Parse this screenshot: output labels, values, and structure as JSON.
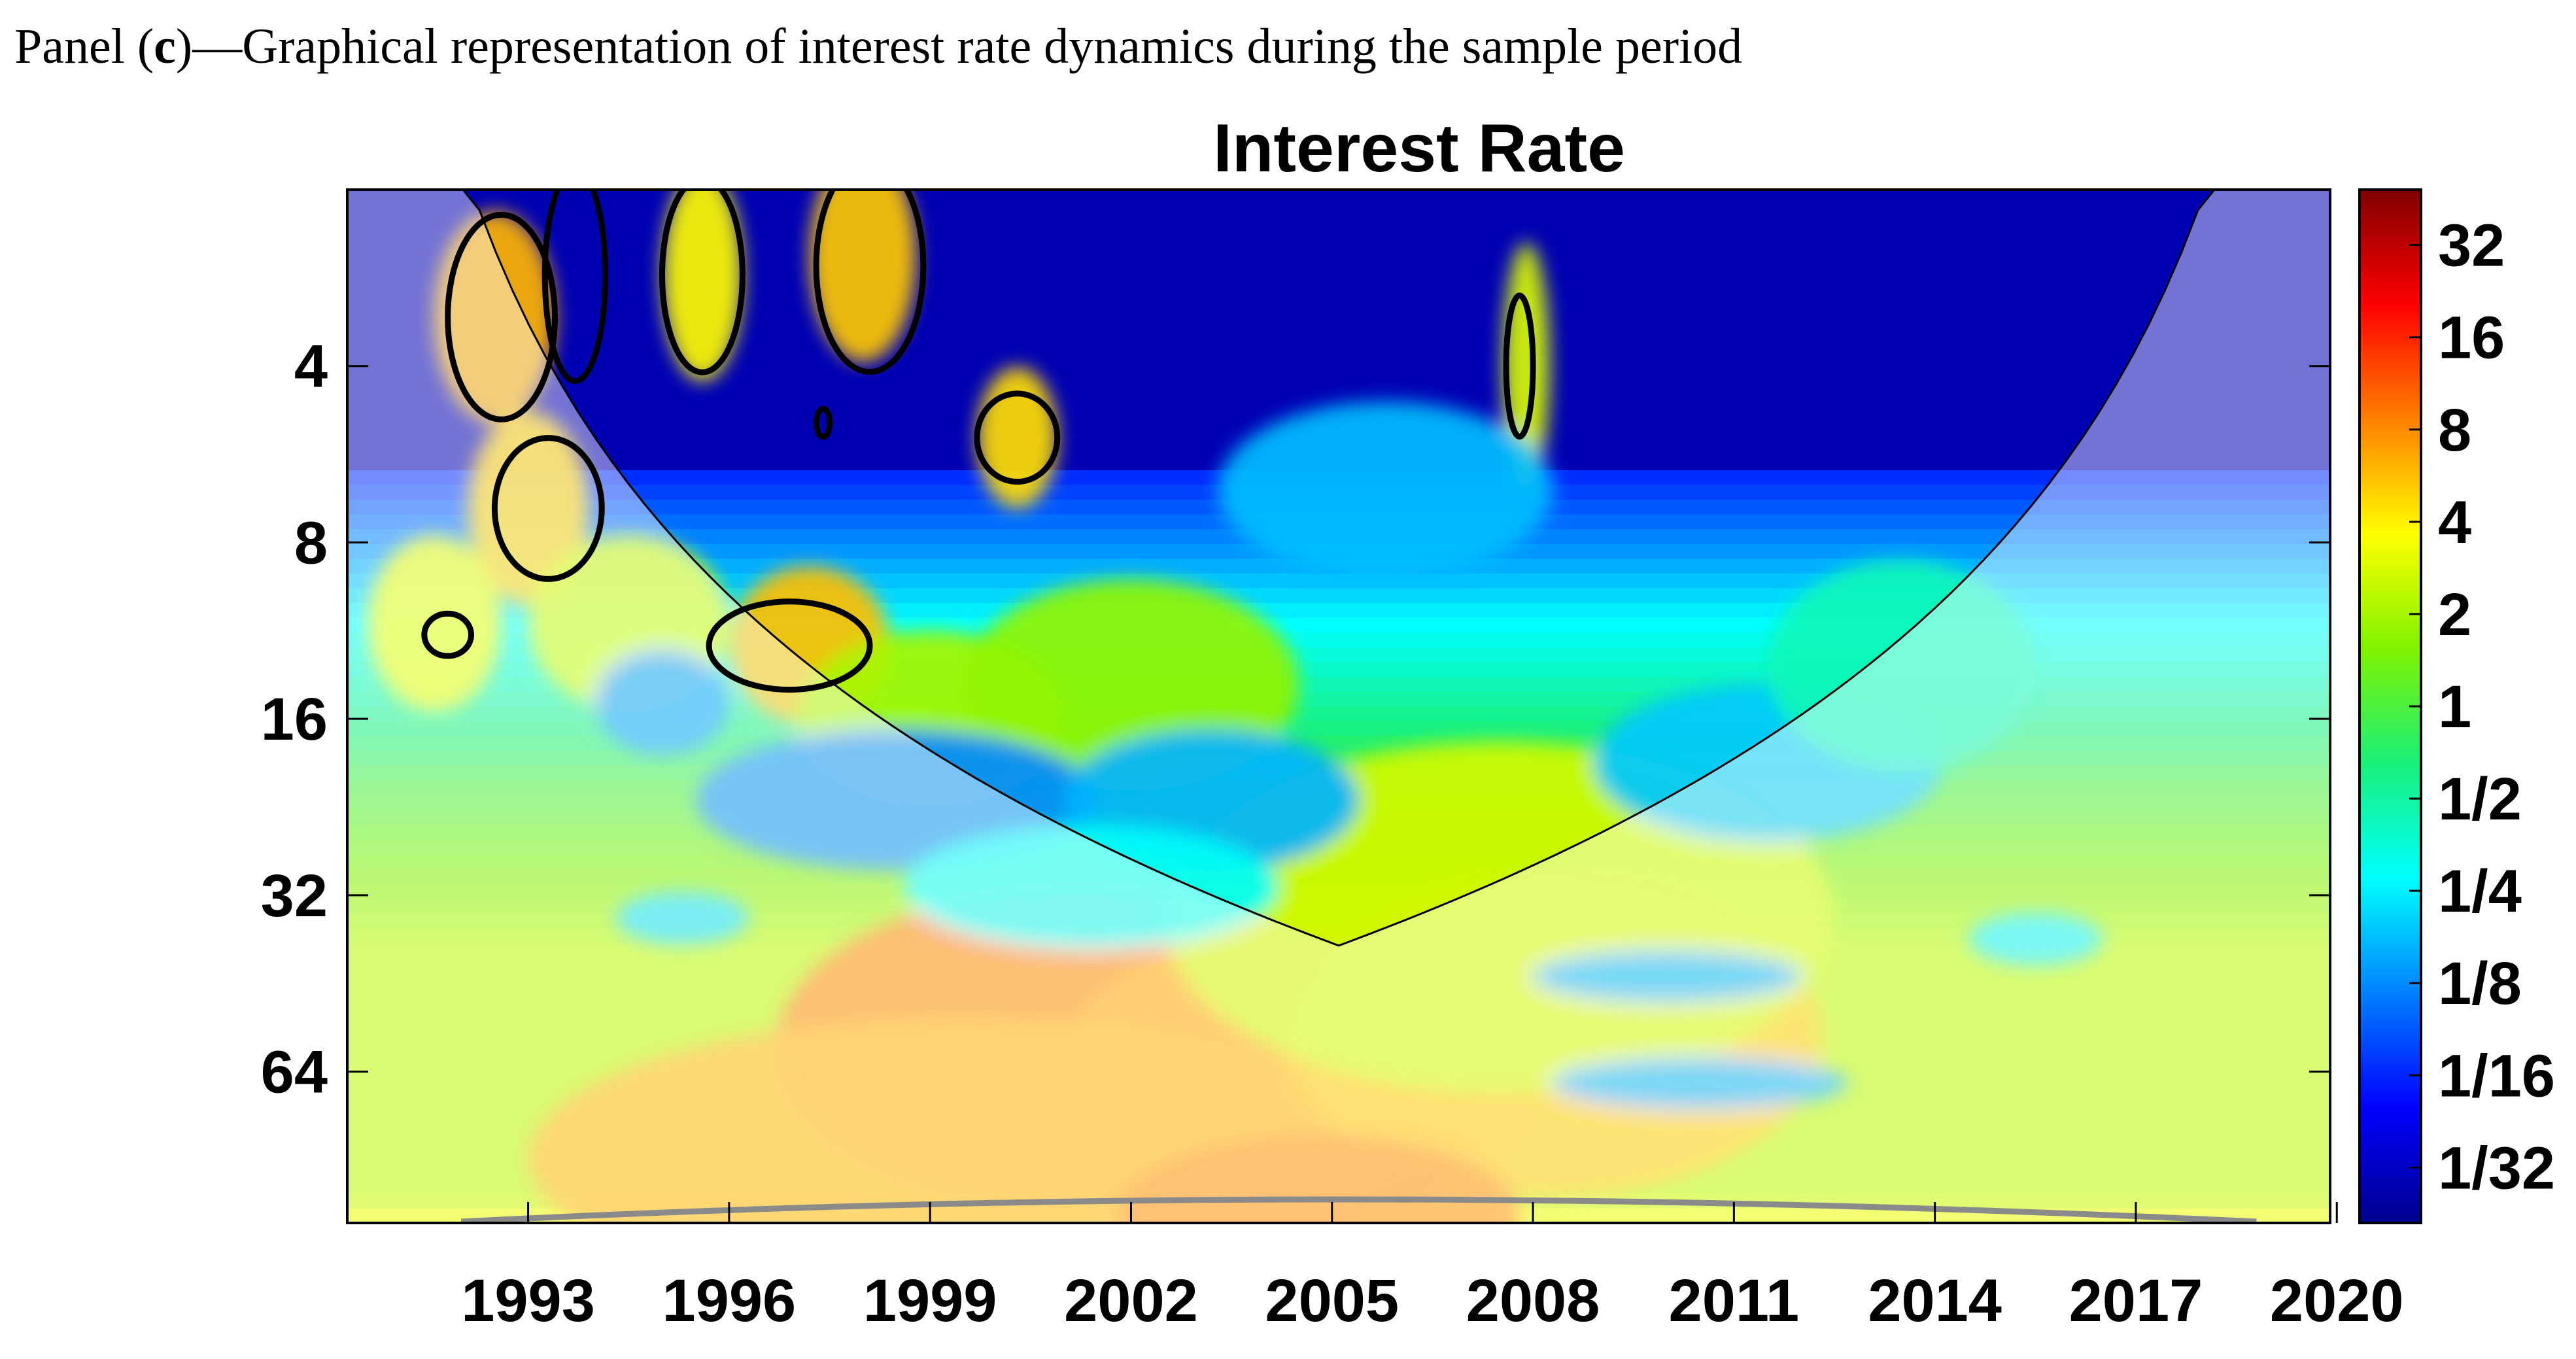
{
  "caption": {
    "prefix": "Panel (",
    "letter": "c",
    "suffix": ")—Graphical representation of interest rate dynamics during the sample period"
  },
  "chart_data": {
    "type": "heatmap",
    "title": "Interest Rate",
    "xlabel": "",
    "ylabel": "",
    "x_ticks": [
      "1993",
      "1996",
      "1999",
      "2002",
      "2005",
      "2008",
      "2011",
      "2014",
      "2017",
      "2020"
    ],
    "x_range": [
      1990.3,
      2019.9
    ],
    "y_ticks": [
      "4",
      "8",
      "16",
      "32",
      "64"
    ],
    "y_scale": "log2",
    "y_range": [
      2,
      116
    ],
    "y_reversed": true,
    "colorbar_ticks": [
      "32",
      "16",
      "8",
      "4",
      "2",
      "1",
      "1/2",
      "1/4",
      "1/8",
      "1/16",
      "1/32"
    ],
    "colorbar_range": [
      -5.6,
      5.6
    ],
    "colormap": [
      "#00008f",
      "#0000ff",
      "#0080ff",
      "#00ffff",
      "#19f07a",
      "#7ff200",
      "#ffff00",
      "#ff8000",
      "#ff0000",
      "#800000"
    ],
    "blobs": [
      {
        "x": 2001.2,
        "period": 58,
        "value": 3.1,
        "wx": 4.5,
        "wy": 0.9
      },
      {
        "x": 2004.5,
        "period": 64,
        "value": 2.7,
        "wx": 3.6,
        "wy": 0.8
      },
      {
        "x": 1999.5,
        "period": 90,
        "value": 2.6,
        "wx": 6.5,
        "wy": 0.8
      },
      {
        "x": 2008.3,
        "period": 56,
        "value": 2.4,
        "wx": 4.0,
        "wy": 0.9
      },
      {
        "x": 2004.8,
        "period": 112,
        "value": 3.0,
        "wx": 3.0,
        "wy": 0.45
      },
      {
        "x": 2007.5,
        "period": 35,
        "value": 1.4,
        "wx": 5.0,
        "wy": 1.0
      },
      {
        "x": 1997.2,
        "period": 12,
        "value": 2.5,
        "wx": 1.2,
        "wy": 0.45
      },
      {
        "x": 1993.0,
        "period": 7,
        "value": 2.3,
        "wx": 0.9,
        "wy": 0.55
      },
      {
        "x": 1992.5,
        "period": 3.3,
        "value": 2.6,
        "wx": 0.9,
        "wy": 0.6
      },
      {
        "x": 1995.6,
        "period": 2.8,
        "value": 1.9,
        "wx": 0.6,
        "wy": 0.6
      },
      {
        "x": 1998.0,
        "period": 2.6,
        "value": 2.4,
        "wx": 0.8,
        "wy": 0.6
      },
      {
        "x": 2000.3,
        "period": 5.3,
        "value": 2.2,
        "wx": 0.6,
        "wy": 0.4
      },
      {
        "x": 1991.6,
        "period": 11,
        "value": 1.7,
        "wx": 1.0,
        "wy": 0.5
      },
      {
        "x": 1994.5,
        "period": 11,
        "value": 1.4,
        "wx": 1.5,
        "wy": 0.5
      },
      {
        "x": 2007.9,
        "period": 4,
        "value": 1.5,
        "wx": 0.35,
        "wy": 0.7
      },
      {
        "x": 1999.0,
        "period": 16,
        "value": 1.0,
        "wx": 2.0,
        "wy": 0.5
      },
      {
        "x": 2002.0,
        "period": 14,
        "value": 0.8,
        "wx": 2.5,
        "wy": 0.6
      },
      {
        "x": 1998.5,
        "period": 22,
        "value": -3.0,
        "wx": 3.0,
        "wy": 0.4
      },
      {
        "x": 2003.2,
        "period": 22,
        "value": -2.6,
        "wx": 2.2,
        "wy": 0.4
      },
      {
        "x": 2001.4,
        "period": 31,
        "value": -1.8,
        "wx": 2.8,
        "wy": 0.35
      },
      {
        "x": 2011.5,
        "period": 19,
        "value": -2.4,
        "wx": 2.6,
        "wy": 0.45
      },
      {
        "x": 2013.5,
        "period": 13,
        "value": -1.2,
        "wx": 2.0,
        "wy": 0.6
      },
      {
        "x": 2010.0,
        "period": 44,
        "value": -2.6,
        "wx": 2.0,
        "wy": 0.15
      },
      {
        "x": 2010.5,
        "period": 67,
        "value": -2.6,
        "wx": 2.2,
        "wy": 0.15
      },
      {
        "x": 2005.8,
        "period": 6.5,
        "value": -2.5,
        "wx": 2.5,
        "wy": 0.5
      },
      {
        "x": 1995.0,
        "period": 15,
        "value": -2.8,
        "wx": 1.0,
        "wy": 0.3
      },
      {
        "x": 1995.3,
        "period": 35,
        "value": -2.2,
        "wx": 1.0,
        "wy": 0.15
      },
      {
        "x": 2015.5,
        "period": 38,
        "value": -2.0,
        "wx": 1.0,
        "wy": 0.15
      }
    ],
    "significance_contours": [
      {
        "x": 1992.6,
        "period": 3.3,
        "wx": 0.8,
        "wy": 0.58
      },
      {
        "x": 1993.7,
        "period": 2.8,
        "wx": 0.45,
        "wy": 0.6
      },
      {
        "x": 1995.6,
        "period": 2.8,
        "wx": 0.6,
        "wy": 0.55
      },
      {
        "x": 1998.1,
        "period": 2.7,
        "wx": 0.8,
        "wy": 0.6
      },
      {
        "x": 1993.3,
        "period": 7,
        "wx": 0.8,
        "wy": 0.4
      },
      {
        "x": 2000.3,
        "period": 5.3,
        "wx": 0.6,
        "wy": 0.25
      },
      {
        "x": 1996.9,
        "period": 12,
        "wx": 1.2,
        "wy": 0.25
      },
      {
        "x": 1991.8,
        "period": 11.5,
        "wx": 0.35,
        "wy": 0.12
      },
      {
        "x": 2007.8,
        "period": 4,
        "wx": 0.2,
        "wy": 0.4
      },
      {
        "x": 1997.4,
        "period": 5,
        "wx": 0.1,
        "wy": 0.08
      }
    ]
  }
}
